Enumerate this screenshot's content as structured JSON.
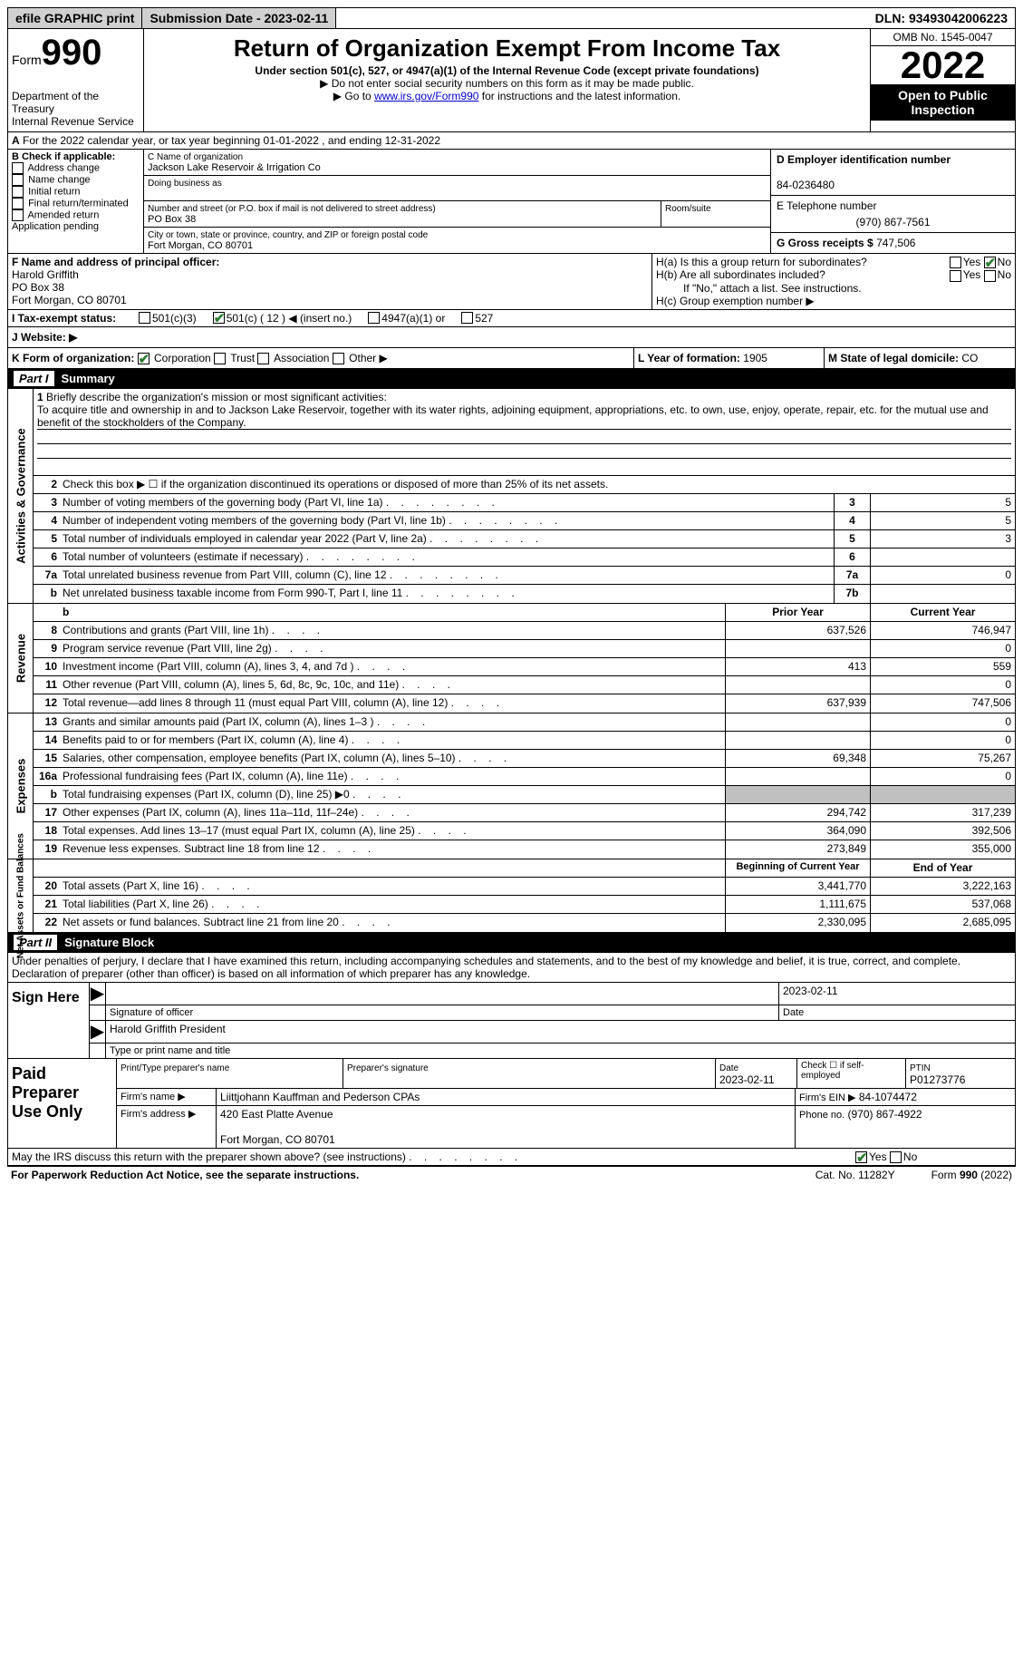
{
  "topbar": {
    "efile": "efile GRAPHIC print",
    "submission": "Submission Date - 2023-02-11",
    "dln": "DLN: 93493042006223"
  },
  "header": {
    "form_label": "Form",
    "form_num": "990",
    "dept": "Department of the Treasury",
    "irs": "Internal Revenue Service",
    "title": "Return of Organization Exempt From Income Tax",
    "sub1": "Under section 501(c), 527, or 4947(a)(1) of the Internal Revenue Code (except private foundations)",
    "sub2": "▶ Do not enter social security numbers on this form as it may be made public.",
    "sub3_pre": "▶ Go to ",
    "sub3_link": "www.irs.gov/Form990",
    "sub3_post": " for instructions and the latest information.",
    "omb": "OMB No. 1545-0047",
    "year": "2022",
    "open": "Open to Public Inspection"
  },
  "A": {
    "text": "For the 2022 calendar year, or tax year beginning 01-01-2022    , and ending 12-31-2022"
  },
  "B": {
    "label": "B Check if applicable:",
    "opts": [
      "Address change",
      "Name change",
      "Initial return",
      "Final return/terminated",
      "Amended return",
      "Application pending"
    ]
  },
  "C": {
    "name_label": "C Name of organization",
    "name": "Jackson Lake Reservoir & Irrigation Co",
    "dba_label": "Doing business as",
    "dba": "",
    "street_label": "Number and street (or P.O. box if mail is not delivered to street address)",
    "street": "PO Box 38",
    "room_label": "Room/suite",
    "room": "",
    "city_label": "City or town, state or province, country, and ZIP or foreign postal code",
    "city": "Fort Morgan, CO  80701"
  },
  "D": {
    "label": "D Employer identification number",
    "val": "84-0236480"
  },
  "E": {
    "label": "E Telephone number",
    "val": "(970) 867-7561"
  },
  "G": {
    "label": "G Gross receipts $",
    "val": "747,506"
  },
  "F": {
    "label": "F  Name and address of principal officer:",
    "name": "Harold Griffith",
    "street": "PO Box 38",
    "city": "Fort Morgan, CO  80701"
  },
  "H": {
    "a": "H(a)  Is this a group return for subordinates?",
    "b": "H(b)  Are all subordinates included?",
    "b_note": "If \"No,\" attach a list. See instructions.",
    "c": "H(c)  Group exemption number ▶"
  },
  "I": {
    "label": "I    Tax-exempt status:",
    "c3": "501(c)(3)",
    "c": "501(c) ( 12 ) ◀ (insert no.)",
    "a1": "4947(a)(1) or",
    "s527": "527"
  },
  "J": {
    "label": "J   Website: ▶"
  },
  "K": {
    "label": "K Form of organization:",
    "opts": [
      "Corporation",
      "Trust",
      "Association",
      "Other ▶"
    ]
  },
  "L": {
    "label": "L Year of formation:",
    "val": "1905"
  },
  "M": {
    "label": "M State of legal domicile:",
    "val": "CO"
  },
  "part1_label": "Part I",
  "part1_title": "Summary",
  "mission": {
    "n": "1",
    "label": "Briefly describe the organization's mission or most significant activities:",
    "text": "To acquire title and ownership in and to Jackson Lake Reservoir, together with its water rights, adjoining equipment, appropriations, etc. to own, use, enjoy, operate, repair, etc. for the mutual use and benefit of the stockholders of the Company."
  },
  "lines_ag": [
    {
      "n": "2",
      "d": "Check this box ▶ ☐ if the organization discontinued its operations or disposed of more than 25% of its net assets.",
      "box": "",
      "val": ""
    },
    {
      "n": "3",
      "d": "Number of voting members of the governing body (Part VI, line 1a)",
      "box": "3",
      "val": "5"
    },
    {
      "n": "4",
      "d": "Number of independent voting members of the governing body (Part VI, line 1b)",
      "box": "4",
      "val": "5"
    },
    {
      "n": "5",
      "d": "Total number of individuals employed in calendar year 2022 (Part V, line 2a)",
      "box": "5",
      "val": "3"
    },
    {
      "n": "6",
      "d": "Total number of volunteers (estimate if necessary)",
      "box": "6",
      "val": ""
    },
    {
      "n": "7a",
      "d": "Total unrelated business revenue from Part VIII, column (C), line 12",
      "box": "7a",
      "val": "0"
    },
    {
      "n": "b",
      "d": "Net unrelated business taxable income from Form 990-T, Part I, line 11",
      "box": "7b",
      "val": ""
    }
  ],
  "rev_hdr": {
    "prior": "Prior Year",
    "curr": "Current Year"
  },
  "lines_rev": [
    {
      "n": "8",
      "d": "Contributions and grants (Part VIII, line 1h)",
      "p": "637,526",
      "c": "746,947"
    },
    {
      "n": "9",
      "d": "Program service revenue (Part VIII, line 2g)",
      "p": "",
      "c": "0"
    },
    {
      "n": "10",
      "d": "Investment income (Part VIII, column (A), lines 3, 4, and 7d )",
      "p": "413",
      "c": "559"
    },
    {
      "n": "11",
      "d": "Other revenue (Part VIII, column (A), lines 5, 6d, 8c, 9c, 10c, and 11e)",
      "p": "",
      "c": "0"
    },
    {
      "n": "12",
      "d": "Total revenue—add lines 8 through 11 (must equal Part VIII, column (A), line 12)",
      "p": "637,939",
      "c": "747,506"
    }
  ],
  "lines_exp": [
    {
      "n": "13",
      "d": "Grants and similar amounts paid (Part IX, column (A), lines 1–3 )",
      "p": "",
      "c": "0"
    },
    {
      "n": "14",
      "d": "Benefits paid to or for members (Part IX, column (A), line 4)",
      "p": "",
      "c": "0"
    },
    {
      "n": "15",
      "d": "Salaries, other compensation, employee benefits (Part IX, column (A), lines 5–10)",
      "p": "69,348",
      "c": "75,267"
    },
    {
      "n": "16a",
      "d": "Professional fundraising fees (Part IX, column (A), line 11e)",
      "p": "",
      "c": "0"
    },
    {
      "n": "b",
      "d": "Total fundraising expenses (Part IX, column (D), line 25) ▶0",
      "p": "shade",
      "c": "shade"
    },
    {
      "n": "17",
      "d": "Other expenses (Part IX, column (A), lines 11a–11d, 11f–24e)",
      "p": "294,742",
      "c": "317,239"
    },
    {
      "n": "18",
      "d": "Total expenses. Add lines 13–17 (must equal Part IX, column (A), line 25)",
      "p": "364,090",
      "c": "392,506"
    },
    {
      "n": "19",
      "d": "Revenue less expenses. Subtract line 18 from line 12",
      "p": "273,849",
      "c": "355,000"
    }
  ],
  "na_hdr": {
    "prior": "Beginning of Current Year",
    "curr": "End of Year"
  },
  "lines_na": [
    {
      "n": "20",
      "d": "Total assets (Part X, line 16)",
      "p": "3,441,770",
      "c": "3,222,163"
    },
    {
      "n": "21",
      "d": "Total liabilities (Part X, line 26)",
      "p": "1,111,675",
      "c": "537,068"
    },
    {
      "n": "22",
      "d": "Net assets or fund balances. Subtract line 21 from line 20",
      "p": "2,330,095",
      "c": "2,685,095"
    }
  ],
  "vlabels": {
    "ag": "Activities & Governance",
    "rev": "Revenue",
    "exp": "Expenses",
    "na": "Net Assets or Fund Balances"
  },
  "part2_label": "Part II",
  "part2_title": "Signature Block",
  "sig": {
    "decl": "Under penalties of perjury, I declare that I have examined this return, including accompanying schedules and statements, and to the best of my knowledge and belief, it is true, correct, and complete. Declaration of preparer (other than officer) is based on all information of which preparer has any knowledge.",
    "here": "Sign Here",
    "sig_officer": "Signature of officer",
    "date": "Date",
    "date_val": "2023-02-11",
    "name": "Harold Griffith  President",
    "name_label": "Type or print name and title"
  },
  "paid": {
    "label": "Paid Preparer Use Only",
    "pname_label": "Print/Type preparer's name",
    "psig_label": "Preparer's signature",
    "pdate_label": "Date",
    "pdate": "2023-02-11",
    "check_label": "Check ☐ if self-employed",
    "ptin_label": "PTIN",
    "ptin": "P01273776",
    "firm_name_label": "Firm's name    ▶",
    "firm_name": "Liittjohann Kauffman and Pederson CPAs",
    "firm_ein_label": "Firm's EIN ▶",
    "firm_ein": "84-1074472",
    "firm_addr_label": "Firm's address ▶",
    "firm_addr1": "420 East Platte Avenue",
    "firm_addr2": "Fort Morgan, CO  80701",
    "phone_label": "Phone no.",
    "phone": "(970) 867-4922"
  },
  "discuss": "May the IRS discuss this return with the preparer shown above? (see instructions)",
  "yes": "Yes",
  "no": "No",
  "footer": {
    "pra": "For Paperwork Reduction Act Notice, see the separate instructions.",
    "cat": "Cat. No. 11282Y",
    "form": "Form 990 (2022)"
  },
  "colors": {
    "link": "#0000cd",
    "check": "#2e7d32",
    "shade": "#c0c0c0"
  }
}
